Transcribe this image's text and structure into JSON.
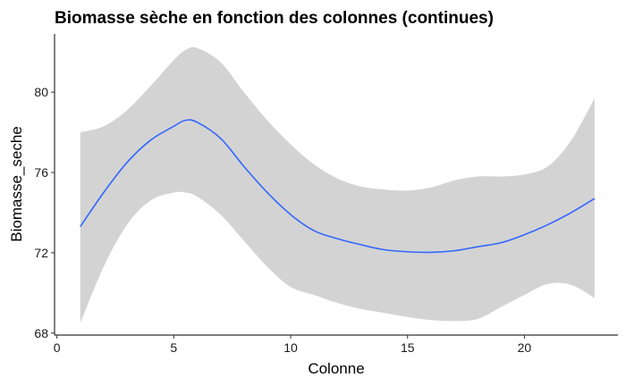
{
  "chart_data": {
    "type": "line",
    "title": "Biomasse sèche en fonction des colonnes (continues)",
    "xlabel": "Colonne",
    "ylabel": "Biomasse_seche",
    "xlim": [
      -0.1,
      24.0
    ],
    "ylim": [
      67.9,
      82.9
    ],
    "x_ticks": [
      0,
      5,
      10,
      15,
      20
    ],
    "y_ticks": [
      68,
      72,
      76,
      80
    ],
    "grid": false,
    "legend": "none",
    "colors": {
      "line": "#3366FF",
      "ribbon": "#D3D3D3",
      "axis": "#000000"
    },
    "series": [
      {
        "x": [
          1,
          2,
          3,
          4,
          5,
          5.5,
          6,
          7,
          8,
          9,
          10,
          11,
          12,
          13,
          14,
          15,
          16,
          17,
          18,
          19,
          20,
          21,
          22,
          23
        ],
        "y": [
          73.3,
          75.0,
          76.5,
          77.6,
          78.3,
          78.6,
          78.5,
          77.7,
          76.3,
          75.0,
          73.9,
          73.1,
          72.7,
          72.4,
          72.15,
          72.05,
          72.02,
          72.1,
          72.3,
          72.5,
          72.9,
          73.4,
          74.0,
          74.7
        ],
        "lower": [
          68.5,
          71.3,
          73.4,
          74.6,
          75.0,
          75.0,
          74.8,
          73.9,
          72.6,
          71.3,
          70.3,
          69.9,
          69.5,
          69.2,
          69.0,
          68.8,
          68.65,
          68.6,
          68.7,
          69.3,
          69.9,
          70.45,
          70.4,
          69.75
        ],
        "upper": [
          78.0,
          78.3,
          79.1,
          80.3,
          81.6,
          82.1,
          82.2,
          81.5,
          80.0,
          78.6,
          77.4,
          76.4,
          75.7,
          75.3,
          75.15,
          75.1,
          75.25,
          75.6,
          75.8,
          75.8,
          75.9,
          76.3,
          77.6,
          79.7
        ]
      }
    ]
  }
}
